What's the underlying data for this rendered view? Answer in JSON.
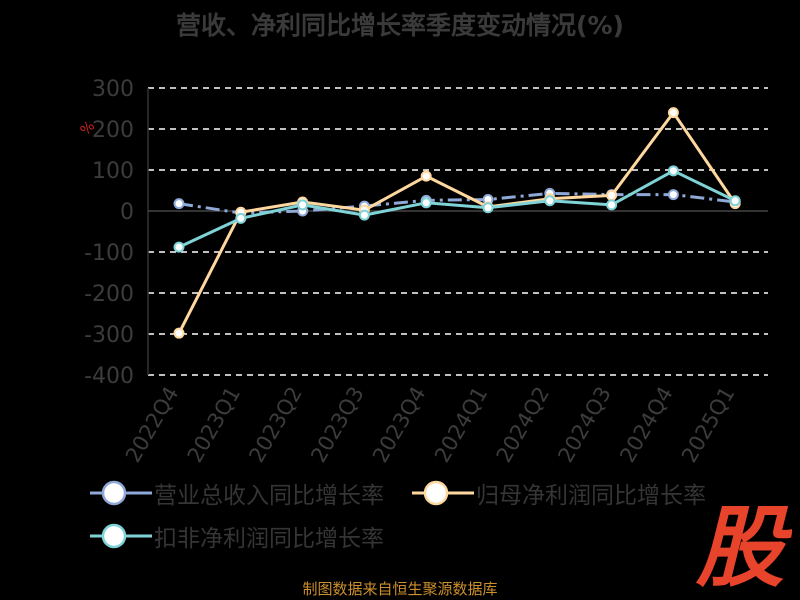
{
  "chart_data": {
    "type": "line",
    "title": "营收、净利同比增长率季度变动情况(%)",
    "ylabel": "%",
    "ylim": [
      -400,
      300
    ],
    "yticks": [
      300,
      200,
      100,
      0,
      -100,
      -200,
      -300,
      -400
    ],
    "grid": true,
    "legend_position": "bottom",
    "categories": [
      "2022Q4",
      "2023Q1",
      "2023Q2",
      "2023Q3",
      "2023Q4",
      "2024Q1",
      "2024Q2",
      "2024Q3",
      "2024Q4",
      "2025Q1"
    ],
    "series": [
      {
        "name": "营业总收入同比增长率",
        "values": [
          18,
          -5,
          0,
          12,
          26,
          28,
          43,
          40,
          40,
          22
        ],
        "color": "#8ea8d8",
        "dash": "dashdot"
      },
      {
        "name": "归母净利润同比增长率",
        "values": [
          -298,
          -3,
          22,
          2,
          85,
          10,
          30,
          38,
          240,
          18
        ],
        "color": "#ffd8a0",
        "dash": "solid"
      },
      {
        "name": "扣非净利润同比增长率",
        "values": [
          -88,
          -18,
          15,
          -10,
          20,
          8,
          25,
          15,
          98,
          25
        ],
        "color": "#7fd3d6",
        "dash": "solid"
      }
    ]
  },
  "footer": "制图数据来自恒生聚源数据库",
  "logo_text": "股"
}
